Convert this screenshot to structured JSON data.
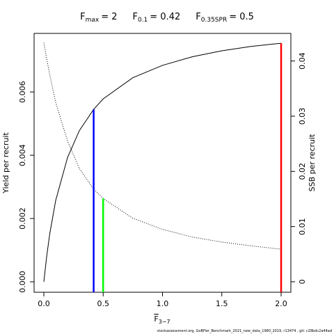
{
  "chart_data": {
    "type": "line",
    "title_parts": [
      {
        "symbol": "F",
        "sub": "max",
        "label": "= 2",
        "value": 2,
        "top": 0.00754,
        "axis": "y",
        "color": "#ff0000"
      },
      {
        "symbol": "F",
        "sub": "0.1",
        "label": "= 0.42",
        "value": 0.42,
        "top": 0.00545,
        "axis": "y",
        "color": "#0000ff"
      },
      {
        "symbol": "F",
        "sub": "0.35SPR",
        "label": "= 0.5",
        "value": 0.5,
        "top": 0.0151,
        "axis": "y2",
        "color": "#00ff00"
      }
    ],
    "x_label": {
      "symbol": "F",
      "sub": "3−7"
    },
    "y_label": "Yield per recruit",
    "y2_label": "SSB per recruit",
    "x": [
      0,
      0.025,
      0.05,
      0.1,
      0.2,
      0.3,
      0.42,
      0.5,
      0.75,
      1,
      1.25,
      1.5,
      1.75,
      2
    ],
    "series": [
      {
        "name": "Yield per recruit",
        "color": "#000000",
        "style": "solid",
        "axis": "y",
        "values": [
          0,
          0.00083,
          0.00152,
          0.00257,
          0.00393,
          0.00478,
          0.00545,
          0.00578,
          0.00645,
          0.00684,
          0.00711,
          0.0073,
          0.00744,
          0.00754
        ]
      },
      {
        "name": "SSB per recruit",
        "color": "#000000",
        "style": "dotted",
        "axis": "y2",
        "values": [
          0.0433,
          0.0403,
          0.0375,
          0.0325,
          0.0255,
          0.0205,
          0.0168,
          0.0151,
          0.0115,
          0.0095,
          0.0081,
          0.0072,
          0.0065,
          0.0059
        ]
      }
    ],
    "xlim": [
      -0.082,
      2.082
    ],
    "xticks": [
      {
        "value": 0,
        "label": "0.0"
      },
      {
        "value": 0.5,
        "label": "0.5"
      },
      {
        "value": 1,
        "label": "1.0"
      },
      {
        "value": 1.5,
        "label": "1.5"
      },
      {
        "value": 2,
        "label": "2.0"
      }
    ],
    "ylim": [
      -0.00033,
      0.00785
    ],
    "yticks": [
      {
        "value": 0,
        "label": "0.000"
      },
      {
        "value": 0.002,
        "label": "0.002"
      },
      {
        "value": 0.004,
        "label": "0.004"
      },
      {
        "value": 0.006,
        "label": "0.006"
      }
    ],
    "y2lim": [
      -0.0019,
      0.045
    ],
    "y2ticks": [
      0,
      0.01,
      0.02,
      0.03,
      0.04
    ],
    "footer": "stockassessment.org, GoBFier_Benchmark_2021_new_data_1980_2019, r13474 , git: c28bdc2a44ad"
  }
}
